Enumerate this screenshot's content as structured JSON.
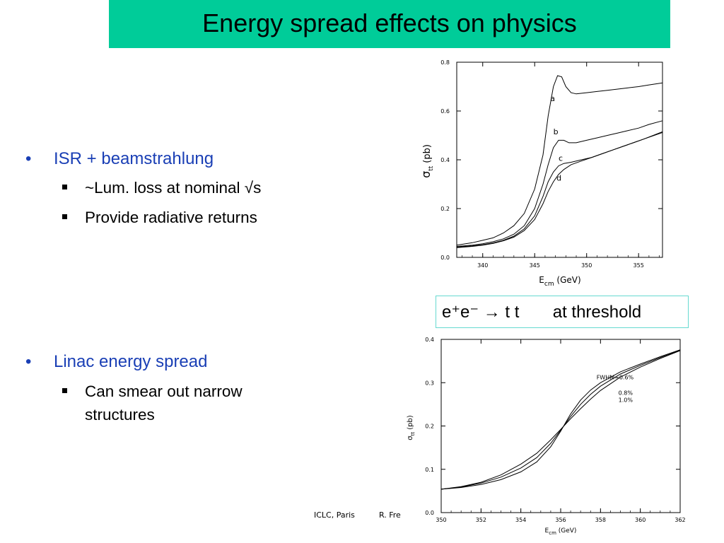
{
  "slide": {
    "title": "Energy spread effects on physics",
    "bullets": [
      {
        "text": "ISR + beamstrahlung",
        "sub": [
          "~Lum. loss at nominal  √s",
          "Provide radiative returns"
        ]
      },
      {
        "text": "Linac energy spread",
        "sub": [
          "Can smear out narrow",
          "structures"
        ]
      }
    ],
    "process": {
      "text": "e⁺e⁻ → t t",
      "suffix": "at threshold"
    },
    "footer": {
      "left": "ICLC, Paris",
      "right": "R. Fre"
    },
    "colors": {
      "title_bg": "#00cc99",
      "bullet_blue": "#1a3fb5",
      "box_border": "#66d9d0"
    }
  },
  "chart_data": [
    {
      "type": "line",
      "xlabel": "E",
      "xlabel_sub": "cm",
      "xlabel_unit": " (GeV)",
      "ylabel": "σ",
      "ylabel_sub": "tt",
      "ylabel_unit": "(pb)",
      "xlim": [
        337.5,
        357.3
      ],
      "ylim": [
        0,
        0.8
      ],
      "xticks": [
        "340",
        "345",
        "350",
        "355"
      ],
      "yticks": [
        "0.0",
        "0.2",
        "0.4",
        "0.6",
        "0.8"
      ],
      "series": [
        {
          "name": "a",
          "points": [
            [
              337.5,
              0.05
            ],
            [
              339,
              0.06
            ],
            [
              340,
              0.07
            ],
            [
              341,
              0.08
            ],
            [
              342,
              0.1
            ],
            [
              343,
              0.13
            ],
            [
              344,
              0.18
            ],
            [
              345,
              0.28
            ],
            [
              345.8,
              0.42
            ],
            [
              346.3,
              0.58
            ],
            [
              346.8,
              0.7
            ],
            [
              347.2,
              0.745
            ],
            [
              347.6,
              0.74
            ],
            [
              348,
              0.7
            ],
            [
              348.5,
              0.675
            ],
            [
              349,
              0.67
            ],
            [
              350,
              0.675
            ],
            [
              351,
              0.68
            ],
            [
              352,
              0.685
            ],
            [
              353,
              0.69
            ],
            [
              354,
              0.695
            ],
            [
              355,
              0.7
            ],
            [
              356,
              0.707
            ],
            [
              357.3,
              0.715
            ]
          ]
        },
        {
          "name": "b",
          "points": [
            [
              337.5,
              0.045
            ],
            [
              339,
              0.05
            ],
            [
              340,
              0.056
            ],
            [
              341,
              0.064
            ],
            [
              342,
              0.076
            ],
            [
              343,
              0.095
            ],
            [
              344,
              0.13
            ],
            [
              345,
              0.2
            ],
            [
              345.8,
              0.3
            ],
            [
              346.3,
              0.38
            ],
            [
              346.8,
              0.45
            ],
            [
              347.3,
              0.48
            ],
            [
              347.8,
              0.48
            ],
            [
              348.3,
              0.47
            ],
            [
              349,
              0.47
            ],
            [
              350,
              0.48
            ],
            [
              351,
              0.49
            ],
            [
              352,
              0.5
            ],
            [
              353,
              0.51
            ],
            [
              354,
              0.52
            ],
            [
              355,
              0.53
            ],
            [
              356,
              0.545
            ],
            [
              357.3,
              0.56
            ]
          ]
        },
        {
          "name": "c",
          "points": [
            [
              337.5,
              0.042
            ],
            [
              339,
              0.047
            ],
            [
              340,
              0.052
            ],
            [
              341,
              0.059
            ],
            [
              342,
              0.07
            ],
            [
              343,
              0.087
            ],
            [
              344,
              0.117
            ],
            [
              345,
              0.17
            ],
            [
              345.8,
              0.25
            ],
            [
              346.3,
              0.31
            ],
            [
              346.8,
              0.35
            ],
            [
              347.3,
              0.375
            ],
            [
              347.8,
              0.385
            ],
            [
              348.5,
              0.39
            ],
            [
              349.5,
              0.4
            ],
            [
              350.5,
              0.41
            ],
            [
              351.5,
              0.425
            ],
            [
              352.5,
              0.44
            ],
            [
              353.5,
              0.455
            ],
            [
              354.5,
              0.47
            ],
            [
              355.5,
              0.485
            ],
            [
              357.3,
              0.515
            ]
          ]
        },
        {
          "name": "d",
          "points": [
            [
              337.5,
              0.04
            ],
            [
              339,
              0.045
            ],
            [
              340,
              0.05
            ],
            [
              341,
              0.057
            ],
            [
              342,
              0.068
            ],
            [
              343,
              0.083
            ],
            [
              344,
              0.11
            ],
            [
              345,
              0.155
            ],
            [
              345.8,
              0.22
            ],
            [
              346.3,
              0.27
            ],
            [
              346.8,
              0.31
            ],
            [
              347.3,
              0.34
            ],
            [
              347.8,
              0.36
            ],
            [
              348.5,
              0.38
            ],
            [
              349.5,
              0.395
            ],
            [
              350.5,
              0.41
            ],
            [
              351.5,
              0.425
            ],
            [
              352.5,
              0.44
            ],
            [
              353.5,
              0.455
            ],
            [
              354.5,
              0.47
            ],
            [
              355.5,
              0.485
            ],
            [
              357.3,
              0.512
            ]
          ]
        }
      ]
    },
    {
      "type": "line",
      "xlabel": "E",
      "xlabel_sub": "cm",
      "xlabel_unit": " (GeV)",
      "ylabel": "σ",
      "ylabel_sub": "tt",
      "ylabel_unit": " (pb)",
      "xlim": [
        350,
        362
      ],
      "ylim": [
        0,
        0.4
      ],
      "xticks": [
        "350",
        "352",
        "354",
        "356",
        "358",
        "360",
        "362"
      ],
      "yticks": [
        "0.0",
        "0.1",
        "0.2",
        "0.3",
        "0.4"
      ],
      "annotations": [
        "FWHM=0.6%",
        "0.8%",
        "1.0%"
      ],
      "series": [
        {
          "name": "FWHM=0.6%",
          "points": [
            [
              350,
              0.054
            ],
            [
              351,
              0.058
            ],
            [
              352,
              0.065
            ],
            [
              353,
              0.076
            ],
            [
              354,
              0.094
            ],
            [
              354.8,
              0.117
            ],
            [
              355.5,
              0.152
            ],
            [
              356,
              0.188
            ],
            [
              356.5,
              0.228
            ],
            [
              357,
              0.26
            ],
            [
              357.5,
              0.283
            ],
            [
              358,
              0.3
            ],
            [
              359,
              0.325
            ],
            [
              360,
              0.343
            ],
            [
              361,
              0.36
            ],
            [
              362,
              0.376
            ]
          ]
        },
        {
          "name": "0.8%",
          "points": [
            [
              350,
              0.054
            ],
            [
              351,
              0.059
            ],
            [
              352,
              0.068
            ],
            [
              353,
              0.082
            ],
            [
              354,
              0.103
            ],
            [
              354.8,
              0.127
            ],
            [
              355.5,
              0.16
            ],
            [
              356,
              0.19
            ],
            [
              356.5,
              0.222
            ],
            [
              357,
              0.25
            ],
            [
              357.5,
              0.273
            ],
            [
              358,
              0.292
            ],
            [
              359,
              0.32
            ],
            [
              360,
              0.34
            ],
            [
              361,
              0.358
            ],
            [
              362,
              0.375
            ]
          ]
        },
        {
          "name": "1.0%",
          "points": [
            [
              350,
              0.054
            ],
            [
              351,
              0.06
            ],
            [
              352,
              0.07
            ],
            [
              353,
              0.087
            ],
            [
              354,
              0.112
            ],
            [
              354.8,
              0.137
            ],
            [
              355.5,
              0.168
            ],
            [
              356,
              0.192
            ],
            [
              356.5,
              0.217
            ],
            [
              357,
              0.24
            ],
            [
              357.5,
              0.262
            ],
            [
              358,
              0.282
            ],
            [
              359,
              0.313
            ],
            [
              360,
              0.336
            ],
            [
              361,
              0.356
            ],
            [
              362,
              0.374
            ]
          ]
        }
      ]
    }
  ]
}
